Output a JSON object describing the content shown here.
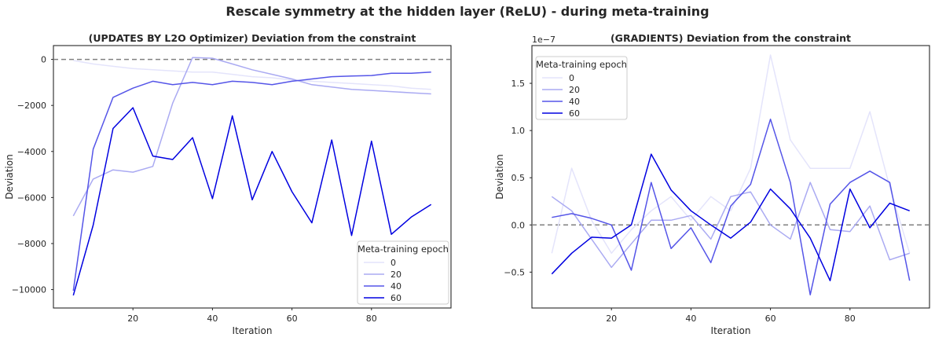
{
  "figure": {
    "suptitle": "Rescale symmetry at the hidden layer (ReLU) - during meta-training"
  },
  "chart_data": [
    {
      "type": "line",
      "title": "(UPDATES BY L2O Optimizer) Deviation from the constraint",
      "xlabel": "Iteration",
      "ylabel": "Deviation",
      "offset_label": "",
      "x": [
        5,
        10,
        15,
        20,
        25,
        30,
        35,
        40,
        45,
        50,
        55,
        60,
        65,
        70,
        75,
        80,
        85,
        90,
        95
      ],
      "xlim": [
        0,
        100
      ],
      "ylim": [
        -10800,
        600
      ],
      "xticks": [
        20,
        40,
        60,
        80
      ],
      "yticks": [
        0,
        -2000,
        -4000,
        -6000,
        -8000,
        -10000
      ],
      "ytick_labels": [
        "0",
        "−2000",
        "−4000",
        "−6000",
        "−8000",
        "−10000"
      ],
      "reference_line": 0,
      "legend": {
        "title": "Meta-training epoch",
        "position": "lower right"
      },
      "series": [
        {
          "name": "0",
          "color": "#e4e4fb",
          "values": [
            -50,
            -200,
            -300,
            -400,
            -450,
            -500,
            -550,
            -550,
            -650,
            -750,
            -800,
            -900,
            -950,
            -1000,
            -1050,
            -1100,
            -1150,
            -1250,
            -1300
          ]
        },
        {
          "name": "20",
          "color": "#aaaaf2",
          "values": [
            -6800,
            -5200,
            -4800,
            -4900,
            -4650,
            -1900,
            80,
            50,
            -200,
            -450,
            -650,
            -850,
            -1100,
            -1200,
            -1300,
            -1350,
            -1400,
            -1450,
            -1500
          ]
        },
        {
          "name": "40",
          "color": "#5555e8",
          "values": [
            -10050,
            -3900,
            -1650,
            -1250,
            -950,
            -1100,
            -1000,
            -1100,
            -950,
            -1000,
            -1100,
            -950,
            -850,
            -750,
            -720,
            -700,
            -600,
            -600,
            -550
          ]
        },
        {
          "name": "60",
          "color": "#0000e0",
          "values": [
            -10250,
            -7200,
            -3000,
            -2100,
            -4200,
            -4350,
            -3400,
            -6050,
            -2450,
            -6100,
            -4000,
            -5750,
            -7100,
            -3500,
            -7650,
            -3550,
            -7600,
            -6850,
            -6300
          ]
        }
      ]
    },
    {
      "type": "line",
      "title": "(GRADIENTS) Deviation from the constraint",
      "xlabel": "Iteration",
      "ylabel": "Deviation",
      "offset_label": "1e−7",
      "x": [
        5,
        10,
        15,
        20,
        25,
        30,
        35,
        40,
        45,
        50,
        55,
        60,
        65,
        70,
        75,
        80,
        85,
        90,
        95
      ],
      "xlim": [
        0,
        100
      ],
      "ylim": [
        -0.88,
        1.9
      ],
      "xticks": [
        20,
        40,
        60,
        80
      ],
      "yticks": [
        -0.5,
        0.0,
        0.5,
        1.0,
        1.5
      ],
      "ytick_labels": [
        "−0.5",
        "0.0",
        "0.5",
        "1.0",
        "1.5"
      ],
      "reference_line": 0,
      "legend": {
        "title": "Meta-training epoch",
        "position": "upper left"
      },
      "series": [
        {
          "name": "0",
          "color": "#e4e4fb",
          "values": [
            -0.3,
            0.6,
            0.05,
            -0.3,
            -0.05,
            0.15,
            0.3,
            0.05,
            0.3,
            0.15,
            0.6,
            1.8,
            0.9,
            0.6,
            0.6,
            0.6,
            1.2,
            0.4,
            -0.3
          ]
        },
        {
          "name": "20",
          "color": "#aaaaf2",
          "values": [
            0.3,
            0.15,
            -0.15,
            -0.45,
            -0.2,
            0.05,
            0.05,
            0.1,
            -0.15,
            0.3,
            0.35,
            0.0,
            -0.15,
            0.45,
            -0.05,
            -0.07,
            0.2,
            -0.37,
            -0.3
          ]
        },
        {
          "name": "40",
          "color": "#5555e8",
          "values": [
            0.08,
            0.12,
            0.07,
            0.0,
            -0.48,
            0.45,
            -0.25,
            -0.03,
            -0.4,
            0.2,
            0.43,
            1.12,
            0.45,
            -0.74,
            0.22,
            0.45,
            0.57,
            0.45,
            -0.59
          ]
        },
        {
          "name": "60",
          "color": "#0000e0",
          "values": [
            -0.52,
            -0.3,
            -0.13,
            -0.14,
            0.0,
            0.75,
            0.37,
            0.15,
            0.0,
            -0.14,
            0.03,
            0.38,
            0.17,
            -0.14,
            -0.59,
            0.38,
            -0.03,
            0.23,
            0.15
          ]
        }
      ]
    }
  ]
}
